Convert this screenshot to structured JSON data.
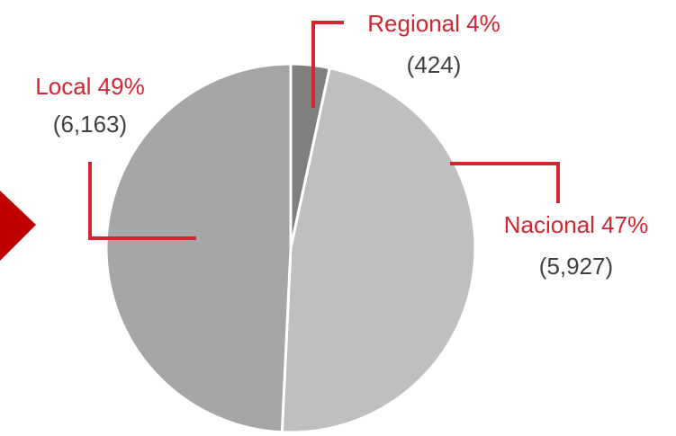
{
  "chart_data": {
    "type": "pie",
    "categories": [
      "Regional 4%",
      "Nacional 47%",
      "Local 49%"
    ],
    "values": [
      424,
      5927,
      6163
    ],
    "value_labels": [
      "(424)",
      "(5,927)",
      "(6,163)"
    ],
    "colors": [
      "#7f7f7f",
      "#bfbfbf",
      "#a6a6a6"
    ]
  }
}
